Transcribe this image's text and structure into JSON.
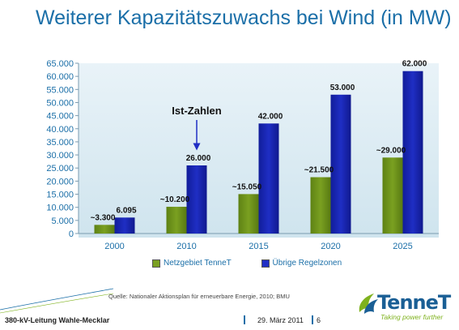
{
  "slide": {
    "title": "Weiterer Kapazitätszuwachs bei Wind (in MW)",
    "source": "Quelle: Nationaler Aktionsplan für erneuerbare Energie, 2010; BMU",
    "footer_left": "380-kV-Leitung Wahle-Mecklar",
    "footer_date": "29. März 2011",
    "footer_page": "6"
  },
  "logo": {
    "name": "TenneT",
    "tagline": "Taking power further",
    "icon": "tennet-flame-icon"
  },
  "colors": {
    "title": "#1b6fa8",
    "series_green": "#7aa021",
    "series_blue": "#1f2ec4",
    "axis_text": "#1b6fa8",
    "plot_bg_top": "#e9f3f8",
    "plot_bg_bottom": "#cfe4ee"
  },
  "chart_data": {
    "type": "bar",
    "title": "Weiterer Kapazitätszuwachs bei Wind (in MW)",
    "categories": [
      "2000",
      "2010",
      "2015",
      "2020",
      "2025"
    ],
    "series": [
      {
        "name": "Netzgebiet TenneT",
        "values": [
          3300,
          10200,
          15050,
          21500,
          29000
        ],
        "labels": [
          "~3.300",
          "~10.200",
          "~15.050",
          "~21.500",
          "~29.000"
        ]
      },
      {
        "name": "Übrige Regelzonen",
        "values": [
          6095,
          26000,
          42000,
          53000,
          62000
        ],
        "labels": [
          "6.095",
          "26.000",
          "42.000",
          "53.000",
          "62.000"
        ]
      }
    ],
    "ylim": [
      0,
      65000
    ],
    "yticks": [
      "0",
      "5.000",
      "10.000",
      "15.000",
      "20.000",
      "25.000",
      "30.000",
      "35.000",
      "40.000",
      "45.000",
      "50.000",
      "55.000",
      "60.000",
      "65.000"
    ],
    "grid": false,
    "legend": "bottom",
    "annotation": {
      "text": "Ist-Zahlen",
      "points_to": "2010 Übrige Regelzonen"
    }
  }
}
